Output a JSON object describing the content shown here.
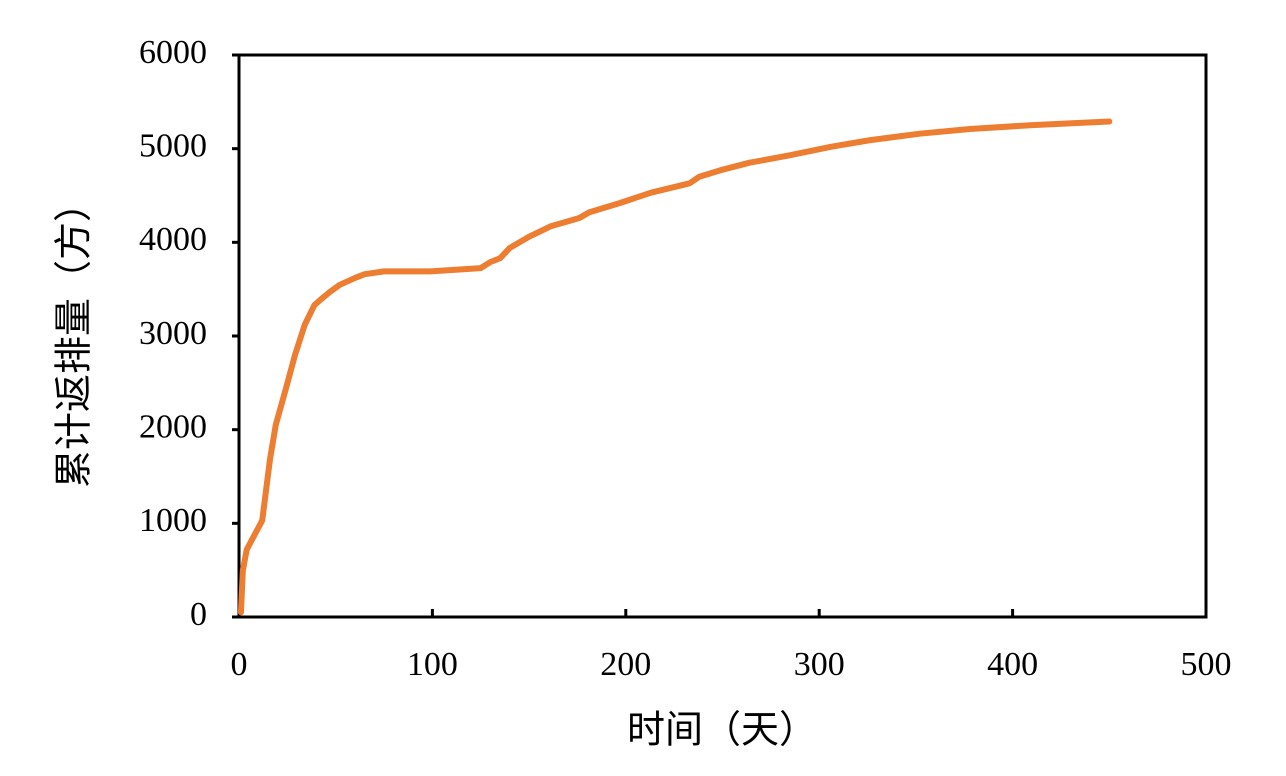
{
  "chart_data": {
    "type": "line",
    "x_label": "时间（天）",
    "y_label": "累计返排量（方）",
    "xlim": [
      0,
      500
    ],
    "xticks": [
      0,
      100,
      200,
      300,
      400,
      500
    ],
    "ylim": [
      0,
      6000
    ],
    "yticks": [
      0,
      1000,
      2000,
      3000,
      4000,
      5000,
      6000
    ],
    "grid": false,
    "series": [
      {
        "color": "#ed7d31",
        "x": [
          1,
          2,
          4,
          12,
          16,
          19,
          24,
          29,
          34,
          39,
          42,
          47,
          52,
          60,
          65,
          75,
          99,
          125,
          130,
          135,
          140,
          150,
          161,
          176,
          181,
          197,
          213,
          233,
          238,
          249,
          264,
          285,
          306,
          326,
          352,
          378,
          409,
          450
        ],
        "values": [
          50,
          500,
          720,
          1030,
          1680,
          2050,
          2420,
          2800,
          3120,
          3330,
          3385,
          3470,
          3545,
          3620,
          3660,
          3690,
          3690,
          3725,
          3790,
          3830,
          3940,
          4060,
          4170,
          4260,
          4320,
          4420,
          4530,
          4630,
          4700,
          4770,
          4850,
          4930,
          5020,
          5090,
          5160,
          5210,
          5250,
          5290
        ]
      }
    ]
  }
}
